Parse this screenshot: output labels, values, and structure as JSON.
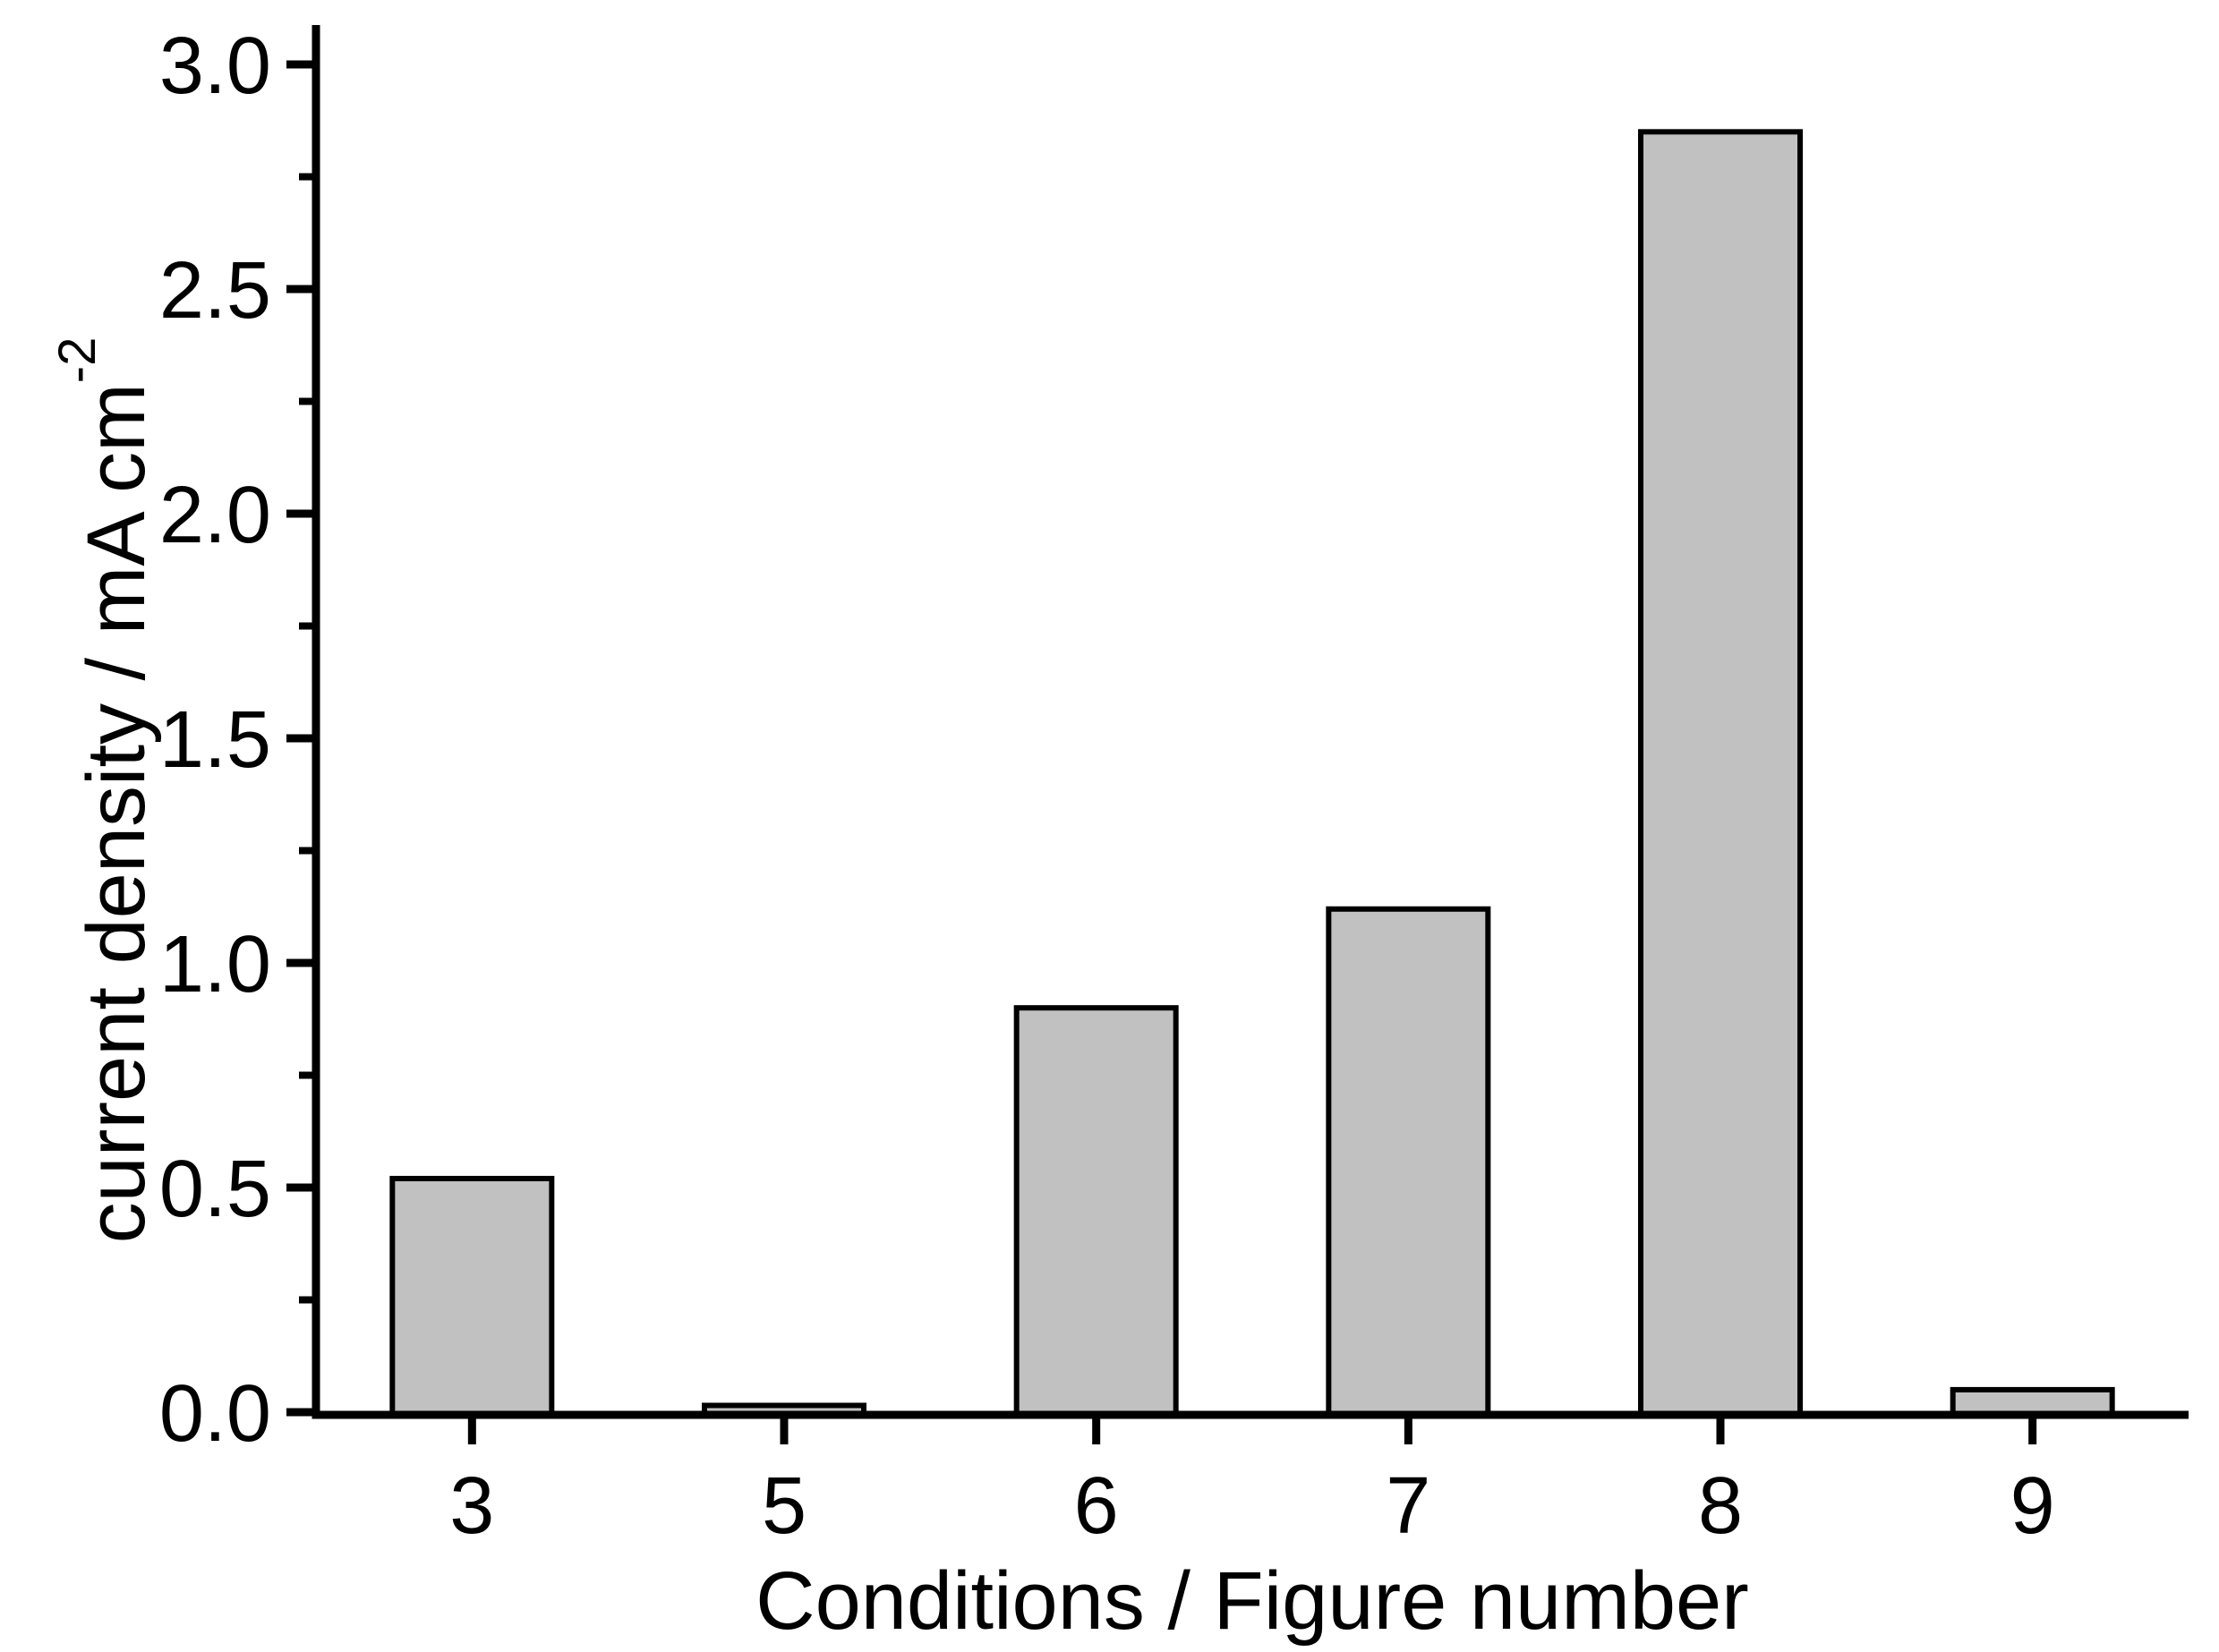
{
  "figure": {
    "background_color": "#ffffff",
    "axis_color": "#000000"
  },
  "chart_data": {
    "type": "bar",
    "title": "",
    "xlabel": "Conditions / Figure number",
    "ylabel": "current density / mA cm⁻²",
    "ylabel_main": "current density / mA cm",
    "ylabel_superscript": "-2",
    "categories": [
      "3",
      "5",
      "6",
      "7",
      "8",
      "9"
    ],
    "values": [
      0.52,
      0.015,
      0.9,
      1.12,
      2.85,
      0.05
    ],
    "ylim": [
      0.0,
      3.0
    ],
    "yticks": [
      0.0,
      0.5,
      1.0,
      1.5,
      2.0,
      2.5,
      3.0
    ],
    "ytick_labels": [
      "0.0",
      "0.5",
      "1.0",
      "1.5",
      "2.0",
      "2.5",
      "3.0"
    ],
    "ytick_interval": 0.5,
    "minor_tick_interval": 0.25,
    "grid": false,
    "legend": "none",
    "bar_fill": "#c1c1c1",
    "bar_stroke": "#000000"
  }
}
